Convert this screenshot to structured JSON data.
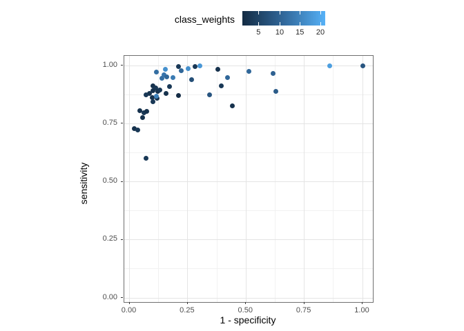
{
  "figure": {
    "background": "#ffffff"
  },
  "legend": {
    "title": "class_weights",
    "ticks": [
      {
        "label": "5",
        "pos": 19.4
      },
      {
        "label": "10",
        "pos": 45.0
      },
      {
        "label": "15",
        "pos": 69.4
      },
      {
        "label": "20",
        "pos": 94.2
      }
    ],
    "gradient_stops": [
      {
        "t": 0,
        "color": "#132B43"
      },
      {
        "t": 0.5,
        "color": "#31689B"
      },
      {
        "t": 0.75,
        "color": "#438CC8"
      },
      {
        "t": 1,
        "color": "#56B1F7"
      }
    ],
    "value_domain": [
      0.8,
      21.6
    ]
  },
  "chart_data": {
    "type": "scatter",
    "title": "",
    "xlabel": "1 - specificity",
    "ylabel": "sensitivity",
    "xlim": [
      0,
      1
    ],
    "ylim": [
      0,
      1
    ],
    "grid": "on",
    "legend_position": "top",
    "color_variable": "class_weights",
    "color_variable_range": [
      1,
      20
    ],
    "x_axis": {
      "tick_labels": [
        "0.00",
        "0.25",
        "0.50",
        "0.75",
        "1.00"
      ],
      "tick_values": [
        0,
        0.25,
        0.5,
        0.75,
        1
      ],
      "minor_values": [
        0.125,
        0.375,
        0.625,
        0.875
      ]
    },
    "y_axis": {
      "tick_labels": [
        "0.00",
        "0.25",
        "0.50",
        "0.75",
        "1.00"
      ],
      "tick_values": [
        0,
        0.25,
        0.5,
        0.75,
        1
      ],
      "minor_values": [
        0.125,
        0.375,
        0.625,
        0.875
      ]
    },
    "points": [
      {
        "x": 0.022,
        "y": 0.728,
        "w": 2
      },
      {
        "x": 0.037,
        "y": 0.722,
        "w": 3
      },
      {
        "x": 0.045,
        "y": 0.805,
        "w": 2
      },
      {
        "x": 0.061,
        "y": 0.797,
        "w": 3
      },
      {
        "x": 0.075,
        "y": 0.802,
        "w": 2
      },
      {
        "x": 0.056,
        "y": 0.775,
        "w": 2
      },
      {
        "x": 0.071,
        "y": 0.6,
        "w": 3
      },
      {
        "x": 0.101,
        "y": 0.911,
        "w": 2
      },
      {
        "x": 0.113,
        "y": 0.903,
        "w": 3
      },
      {
        "x": 0.1,
        "y": 0.891,
        "w": 2
      },
      {
        "x": 0.121,
        "y": 0.888,
        "w": 2
      },
      {
        "x": 0.131,
        "y": 0.896,
        "w": 3
      },
      {
        "x": 0.086,
        "y": 0.879,
        "w": 2
      },
      {
        "x": 0.071,
        "y": 0.875,
        "w": 3
      },
      {
        "x": 0.099,
        "y": 0.862,
        "w": 2
      },
      {
        "x": 0.118,
        "y": 0.858,
        "w": 2
      },
      {
        "x": 0.1,
        "y": 0.845,
        "w": 3
      },
      {
        "x": 0.115,
        "y": 0.868,
        "w": 15
      },
      {
        "x": 0.117,
        "y": 0.972,
        "w": 12
      },
      {
        "x": 0.14,
        "y": 0.944,
        "w": 12
      },
      {
        "x": 0.149,
        "y": 0.961,
        "w": 13
      },
      {
        "x": 0.16,
        "y": 0.951,
        "w": 11
      },
      {
        "x": 0.153,
        "y": 0.985,
        "w": 17
      },
      {
        "x": 0.187,
        "y": 0.947,
        "w": 14
      },
      {
        "x": 0.171,
        "y": 0.91,
        "w": 3
      },
      {
        "x": 0.156,
        "y": 0.88,
        "w": 2
      },
      {
        "x": 0.211,
        "y": 0.997,
        "w": 3
      },
      {
        "x": 0.221,
        "y": 0.979,
        "w": 11
      },
      {
        "x": 0.252,
        "y": 0.987,
        "w": 17
      },
      {
        "x": 0.211,
        "y": 0.87,
        "w": 1
      },
      {
        "x": 0.268,
        "y": 0.94,
        "w": 7
      },
      {
        "x": 0.282,
        "y": 0.995,
        "w": 3
      },
      {
        "x": 0.302,
        "y": 1.0,
        "w": 18
      },
      {
        "x": 0.38,
        "y": 0.984,
        "w": 2
      },
      {
        "x": 0.421,
        "y": 0.948,
        "w": 11
      },
      {
        "x": 0.394,
        "y": 0.913,
        "w": 3
      },
      {
        "x": 0.344,
        "y": 0.875,
        "w": 8
      },
      {
        "x": 0.441,
        "y": 0.826,
        "w": 2
      },
      {
        "x": 0.513,
        "y": 0.974,
        "w": 11
      },
      {
        "x": 0.617,
        "y": 0.966,
        "w": 10
      },
      {
        "x": 0.628,
        "y": 0.888,
        "w": 9
      },
      {
        "x": 0.858,
        "y": 1.0,
        "w": 19
      },
      {
        "x": 1.0,
        "y": 1.0,
        "w": 8
      }
    ]
  },
  "panel_style": {
    "border_color": "#6e6e6e",
    "grid_major_color": "#e4e4e4",
    "grid_minor_color": "#f1f1f1",
    "tick_color": "#333333",
    "tick_label_color": "#4d4d4d"
  }
}
